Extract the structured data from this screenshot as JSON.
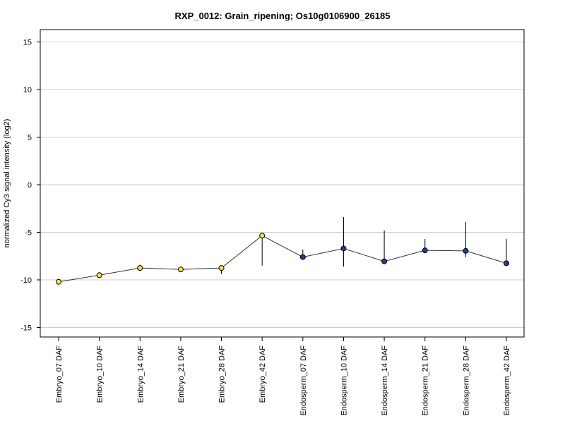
{
  "chart_data": {
    "type": "line",
    "title": "RXP_0012: Grain_ripening; Os10g0106900_26185",
    "xlabel": "",
    "ylabel": "normalized Cy3 signal intensity (log2)",
    "ylim": [
      -16,
      16.3
    ],
    "yticks": [
      15,
      10,
      5,
      0,
      -5,
      -10,
      -15
    ],
    "grid": "horizontal",
    "categories": [
      "Embryo_07 DAF",
      "Embryo_10 DAF",
      "Embryo_14 DAF",
      "Embryo_21 DAF",
      "Embryo_28 DAF",
      "Embryo_42 DAF",
      "Endosperm_07 DAF",
      "Endosperm_10 DAF",
      "Endosperm_14 DAF",
      "Endosperm_21 DAF",
      "Endosperm_28 DAF",
      "Endosperm_42 DAF"
    ],
    "series": [
      {
        "values": [
          -10.2,
          -9.5,
          -8.75,
          -8.9,
          -8.75,
          -5.35,
          -7.6,
          -6.7,
          -8.05,
          -6.9,
          -6.95,
          -8.25
        ],
        "error_low": [
          -10.2,
          -9.8,
          -8.9,
          -9.0,
          -9.4,
          -8.5,
          -7.7,
          -8.6,
          -8.1,
          -6.95,
          -7.6,
          -8.25
        ],
        "error_high": [
          -10.1,
          -9.3,
          -8.4,
          -8.85,
          -8.55,
          -5.2,
          -6.8,
          -3.4,
          -4.8,
          -5.7,
          -3.9,
          -5.7
        ],
        "colors": [
          "#f5e23a",
          "#f5e23a",
          "#f5e23a",
          "#f5e23a",
          "#f5e23a",
          "#f5e23a",
          "#1f3f99",
          "#1f3f99",
          "#1f3f99",
          "#1f3f99",
          "#1f3f99",
          "#1f3f99"
        ]
      }
    ]
  }
}
